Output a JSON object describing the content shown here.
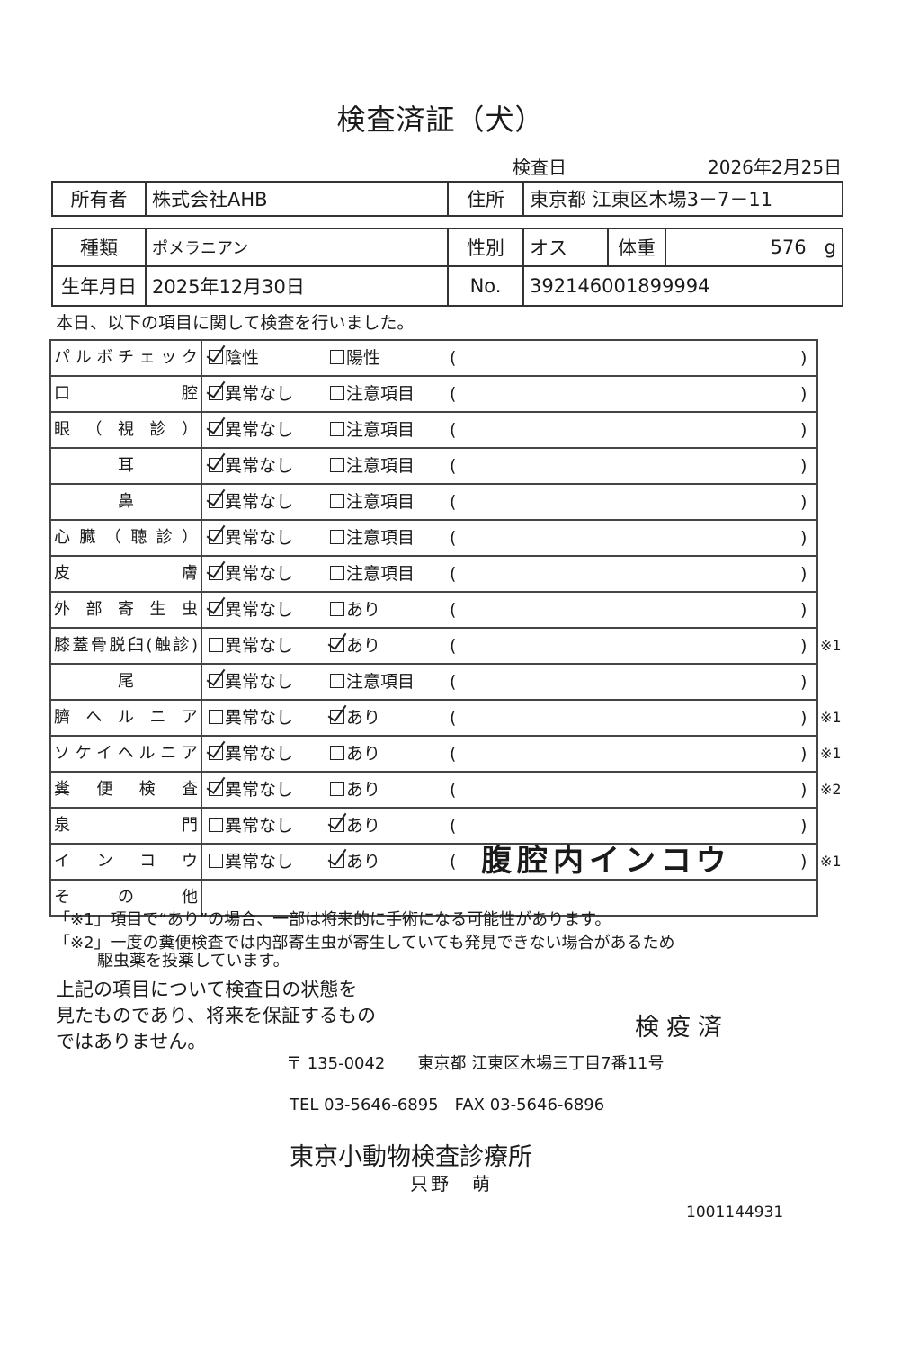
{
  "title": "検査済証（犬）",
  "exam_date": {
    "label": "検査日",
    "value": "2026年2月25日"
  },
  "owner": {
    "label": "所有者",
    "value": "株式会社AHB"
  },
  "address": {
    "label": "住所",
    "value": "東京都 江東区木場3－7－11"
  },
  "breed": {
    "label": "種類",
    "value": "ポメラニアン"
  },
  "sex": {
    "label": "性別",
    "value": "オス"
  },
  "weight": {
    "label": "体重",
    "value": "576",
    "unit": "g"
  },
  "birthdate": {
    "label": "生年月日",
    "value": "2025年12月30日"
  },
  "number": {
    "label": "No.",
    "value": "392146001899994"
  },
  "intro": "本日、以下の項目に関して検査を行いました。",
  "checks": [
    {
      "label": "パルボチェック",
      "opt1": "陰性",
      "opt2": "陽性",
      "checked": 1,
      "memo": "",
      "note": ""
    },
    {
      "label": "口腔",
      "opt1": "異常なし",
      "opt2": "注意項目",
      "checked": 1,
      "memo": "",
      "note": ""
    },
    {
      "label": "眼（視診）",
      "opt1": "異常なし",
      "opt2": "注意項目",
      "checked": 1,
      "memo": "",
      "note": ""
    },
    {
      "label": "耳",
      "opt1": "異常なし",
      "opt2": "注意項目",
      "checked": 1,
      "memo": "",
      "note": ""
    },
    {
      "label": "鼻",
      "opt1": "異常なし",
      "opt2": "注意項目",
      "checked": 1,
      "memo": "",
      "note": ""
    },
    {
      "label": "心臓（聴診）",
      "opt1": "異常なし",
      "opt2": "注意項目",
      "checked": 1,
      "memo": "",
      "note": ""
    },
    {
      "label": "皮膚",
      "opt1": "異常なし",
      "opt2": "注意項目",
      "checked": 1,
      "memo": "",
      "note": ""
    },
    {
      "label": "外部寄生虫",
      "opt1": "異常なし",
      "opt2": "あり",
      "checked": 1,
      "memo": "",
      "note": ""
    },
    {
      "label": "膝蓋骨脱臼(触診)",
      "opt1": "異常なし",
      "opt2": "あり",
      "checked": 2,
      "memo": "",
      "note": "※1"
    },
    {
      "label": "尾",
      "opt1": "異常なし",
      "opt2": "注意項目",
      "checked": 1,
      "memo": "",
      "note": ""
    },
    {
      "label": "臍ヘルニア",
      "opt1": "異常なし",
      "opt2": "あり",
      "checked": 2,
      "memo": "",
      "note": "※1"
    },
    {
      "label": "ソケイヘルニア",
      "opt1": "異常なし",
      "opt2": "あり",
      "checked": 1,
      "memo": "",
      "note": "※1"
    },
    {
      "label": "糞便検査",
      "opt1": "異常なし",
      "opt2": "あり",
      "checked": 1,
      "memo": "",
      "note": "※2"
    },
    {
      "label": "泉門",
      "opt1": "異常なし",
      "opt2": "あり",
      "checked": 2,
      "memo": "",
      "note": ""
    },
    {
      "label": "インコウ",
      "opt1": "異常なし",
      "opt2": "あり",
      "checked": 2,
      "memo": "腹腔内インコウ",
      "note": "※1"
    }
  ],
  "other_label": "その他",
  "paren_open": "(",
  "paren_close": ")",
  "footnote1": "「※1」項目で“あり”の場合、一部は将来的に手術になる可能性があります。",
  "footnote2": "「※2」一度の糞便検査では内部寄生虫が寄生していても発見できない場合があるため",
  "footnote2b": "駆虫薬を投薬しています。",
  "disclaimer": "上記の項目について検査日の状態を\n見たものであり、将来を保証するもの\nではありません。",
  "stamp": "検疫済",
  "clinic_address": "〒 135-0042　　東京都 江東区木場三丁目7番11号",
  "clinic_tel": "TEL 03-5646-6895　FAX 03-5646-6896",
  "clinic_name": "東京小動物検査診療所",
  "vet_name": "只野　萌",
  "serial": "1001144931"
}
